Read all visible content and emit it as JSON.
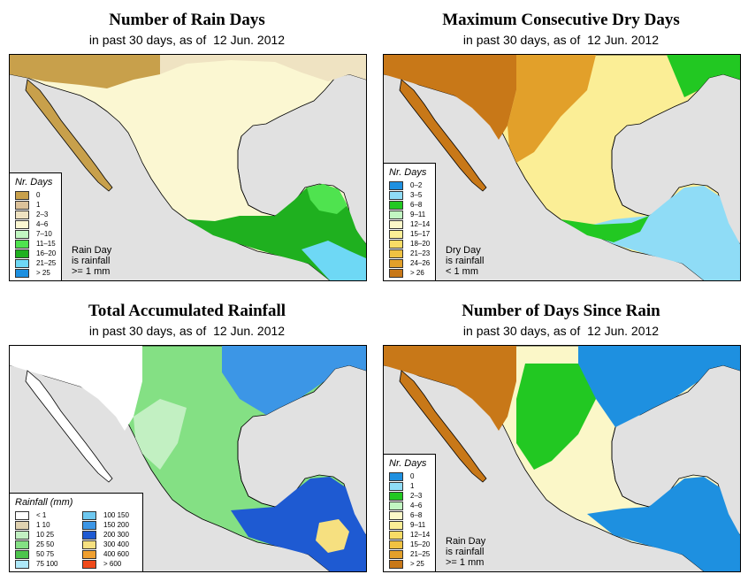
{
  "subtitle": {
    "prefix": "in past 30 days, as of",
    "date": "12 Jun. 2012"
  },
  "ocean_color": "#e1e1e1",
  "panels": [
    {
      "title": "Number of Rain Days",
      "legend_title": "Nr. Days",
      "note": "Rain Day\nis rainfall\n>= 1 mm",
      "legend": [
        {
          "label": "0",
          "color": "#c8a04b"
        },
        {
          "label": "1",
          "color": "#dcc29a"
        },
        {
          "label": "2–3",
          "color": "#efe3c2"
        },
        {
          "label": "4–6",
          "color": "#fbf7d2"
        },
        {
          "label": "7–10",
          "color": "#c2f7c2"
        },
        {
          "label": "11–15",
          "color": "#4fe34f"
        },
        {
          "label": "16–20",
          "color": "#1fb01f"
        },
        {
          "label": "21–25",
          "color": "#6ed8f5"
        },
        {
          "label": "> 25",
          "color": "#1e90e0"
        }
      ]
    },
    {
      "title": "Maximum Consecutive Dry Days",
      "legend_title": "Nr. Days",
      "note": "Dry Day\nis rainfall\n< 1 mm",
      "legend": [
        {
          "label": "0–2",
          "color": "#1e90e0"
        },
        {
          "label": "3–5",
          "color": "#8fdcf6"
        },
        {
          "label": "6–8",
          "color": "#22c822"
        },
        {
          "label": "9–11",
          "color": "#c2f7c2"
        },
        {
          "label": "12–14",
          "color": "#fbf7c8"
        },
        {
          "label": "15–17",
          "color": "#fbee96"
        },
        {
          "label": "18–20",
          "color": "#f8dc66"
        },
        {
          "label": "21–23",
          "color": "#f0c242"
        },
        {
          "label": "24–26",
          "color": "#e2a02a"
        },
        {
          "label": "> 26",
          "color": "#c87818"
        }
      ]
    },
    {
      "title": "Total Accumulated Rainfall",
      "legend_title": "Rainfall (mm)",
      "note": "",
      "legend_cols": [
        [
          {
            "label": "< 1",
            "color": "#ffffff"
          },
          {
            "label": "1   10",
            "color": "#e0d2b0"
          },
          {
            "label": "10   25",
            "color": "#c2f0c2"
          },
          {
            "label": "25   50",
            "color": "#84e084"
          },
          {
            "label": "50   75",
            "color": "#4cc44c"
          },
          {
            "label": "75   100",
            "color": "#aee8f8"
          }
        ],
        [
          {
            "label": "100  150",
            "color": "#6ec8f0"
          },
          {
            "label": "150  200",
            "color": "#3c96e6"
          },
          {
            "label": "200  300",
            "color": "#1e5ad2"
          },
          {
            "label": "300  400",
            "color": "#f6e080"
          },
          {
            "label": "400  600",
            "color": "#f0a030"
          },
          {
            "label": "> 600",
            "color": "#f04a1a"
          }
        ]
      ]
    },
    {
      "title": "Number of Days Since Rain",
      "legend_title": "Nr. Days",
      "note": "Rain Day\nis rainfall\n>= 1 mm",
      "legend": [
        {
          "label": "0",
          "color": "#1e90e0"
        },
        {
          "label": "1",
          "color": "#8fdcf6"
        },
        {
          "label": "2–3",
          "color": "#22c822"
        },
        {
          "label": "4–6",
          "color": "#c2f7c2"
        },
        {
          "label": "6–8",
          "color": "#fbf7c8"
        },
        {
          "label": "9–11",
          "color": "#fbee96"
        },
        {
          "label": "12–14",
          "color": "#f8dc66"
        },
        {
          "label": "15–20",
          "color": "#f0c242"
        },
        {
          "label": "21–25",
          "color": "#e2a02a"
        },
        {
          "label": "> 25",
          "color": "#c87818"
        }
      ]
    }
  ]
}
